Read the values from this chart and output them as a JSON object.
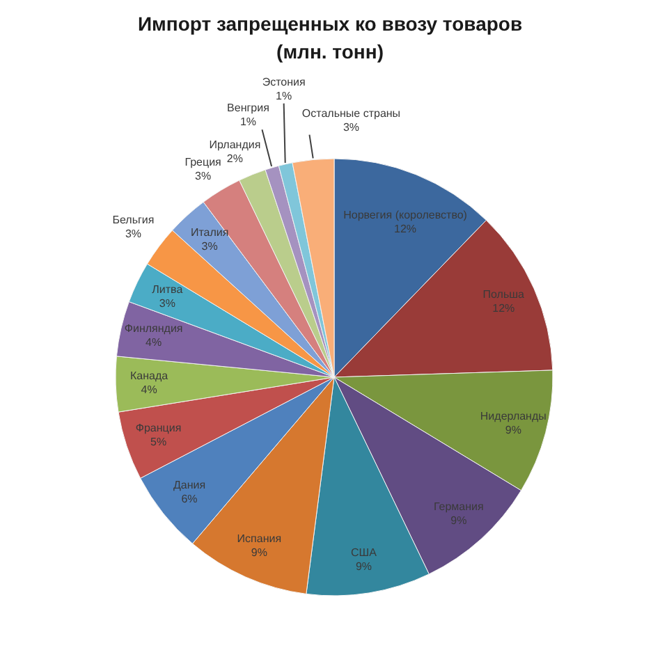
{
  "chart_data": {
    "type": "pie",
    "title": "Импорт запрещенных ко ввозу товаров\n(млн. тонн)",
    "categories": [
      "Норвегия (королевство)",
      "Польша",
      "Нидерланды",
      "Германия",
      "США",
      "Испания",
      "Дания",
      "Франция",
      "Канада",
      "Финляндия",
      "Литва",
      "Бельгия",
      "Италия",
      "Греция",
      "Ирландия",
      "Венгрия",
      "Эстония",
      "Остальные страны"
    ],
    "values": [
      12,
      12,
      9,
      9,
      9,
      9,
      6,
      5,
      4,
      4,
      3,
      3,
      3,
      3,
      2,
      1,
      1,
      3
    ],
    "colors": [
      "#3c689e",
      "#993b38",
      "#7a963e",
      "#614c83",
      "#33879e",
      "#d6782f",
      "#4f81bd",
      "#c0504d",
      "#9bbb59",
      "#8064a2",
      "#4bacc6",
      "#f79646",
      "#7ea0d6",
      "#d5807e",
      "#bacd8c",
      "#a592c0",
      "#80c6da",
      "#f9ae78"
    ],
    "value_labels": [
      "12%",
      "12%",
      "9%",
      "9%",
      "9%",
      "9%",
      "6%",
      "5%",
      "4%",
      "4%",
      "3%",
      "3%",
      "3%",
      "3%",
      "2%",
      "1%",
      "1%",
      "3%"
    ]
  }
}
